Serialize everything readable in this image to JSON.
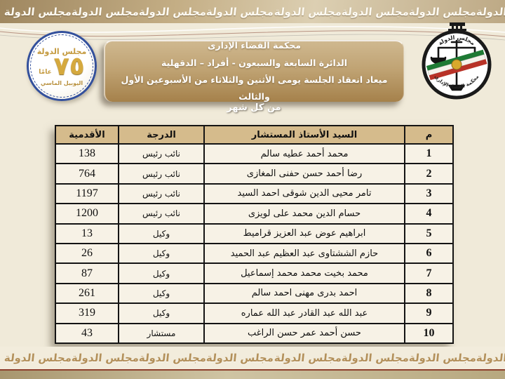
{
  "banners": {
    "top_text": "مجلس الدولة",
    "bottom_text": "مجلس الدولة",
    "repeat_count": 9
  },
  "jubilee_badge": {
    "top_label": "مجلس الدولة",
    "number": "٧٥",
    "years_word": "عامًا",
    "bottom_label": "اليوبيل الماسي"
  },
  "court_emblem": {
    "top_text": "مجلس الدولة",
    "bottom_text": "محكمة القضاء الإدارى"
  },
  "header_box": {
    "line1": "محكمة القضاء الإدارى",
    "line2": "الدائرة السابعة والسبعون - أفراد – الدقهلية",
    "line3": "ميعاد انعقاد الجلسة يومى الأثنين والثلاثاء من الأسبوعين الأول والثالث",
    "line4": "من كل شهر"
  },
  "table": {
    "headers": {
      "index": "م",
      "name": "السيد الأستاذ المستشار",
      "grade": "الدرجة",
      "seniority": "الأقدمية"
    },
    "rows": [
      {
        "index": "1",
        "name": "محمد أحمد عطيه سالم",
        "grade": "نائب رئيس",
        "seniority": "138"
      },
      {
        "index": "2",
        "name": "رضا أحمد حسن حفنى المغازى",
        "grade": "نائب رئيس",
        "seniority": "764"
      },
      {
        "index": "3",
        "name": "تامر محيى الدين شوقى احمد السيد",
        "grade": "نائب رئيس",
        "seniority": "1197"
      },
      {
        "index": "4",
        "name": "حسام الدين محمد على لويزى",
        "grade": "نائب رئيس",
        "seniority": "1200"
      },
      {
        "index": "5",
        "name": "ابراهيم عوض عبد العزيز قراميط",
        "grade": "وكيل",
        "seniority": "13"
      },
      {
        "index": "6",
        "name": "حازم الششتاوى عبد العظيم عبد الحميد",
        "grade": "وكيل",
        "seniority": "26"
      },
      {
        "index": "7",
        "name": "محمد بخيت محمد محمد إسماعيل",
        "grade": "وكيل",
        "seniority": "87"
      },
      {
        "index": "8",
        "name": "احمد بدرى مهنى احمد سالم",
        "grade": "وكيل",
        "seniority": "261"
      },
      {
        "index": "9",
        "name": "عبد الله عبد القادر عبد الله عماره",
        "grade": "وكيل",
        "seniority": "319"
      },
      {
        "index": "10",
        "name": "حسن أحمد عمر حسن الراغب",
        "grade": "مستشار",
        "seniority": "43"
      }
    ]
  },
  "colors": {
    "page_background": "#f0ead9",
    "top_band_gold": "#c4ae85",
    "bottom_band_text_gold": "#b3905a",
    "header_box_gradient_top": "#cfb88f",
    "header_box_gradient_bottom": "#a5814b",
    "table_header_background": "#d5bb8c",
    "table_row_background": "#f7f2e6",
    "table_border": "#141414",
    "badge_ring_blue": "#33509c",
    "badge_gold": "#c49a3f",
    "ribbon_green": "#1e7a34",
    "ribbon_red": "#b83227",
    "bottom_strip_line_red": "#8e3f2d"
  }
}
